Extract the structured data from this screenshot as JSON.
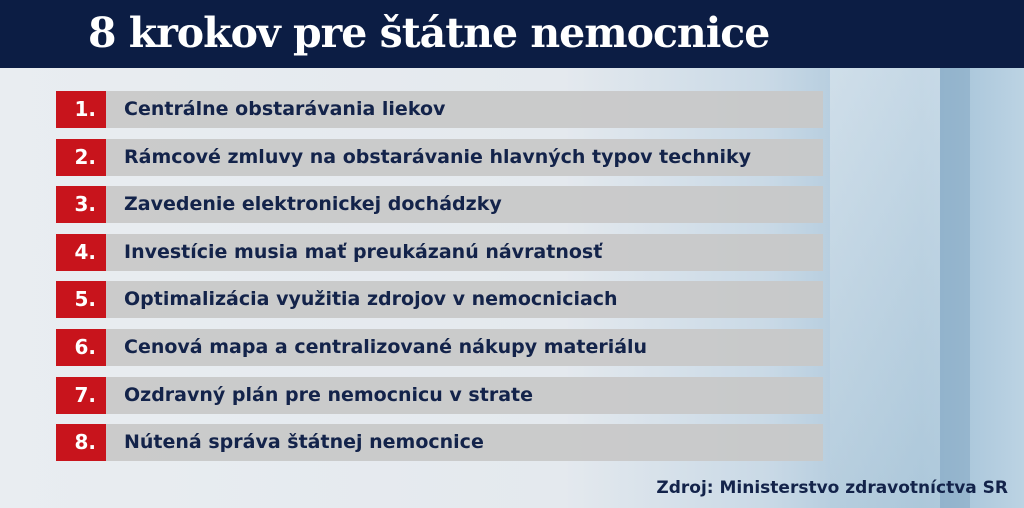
{
  "title": "8 krokov pre štátne nemocnice",
  "steps": [
    {
      "num": "1.",
      "text": "Centrálne obstarávania liekov"
    },
    {
      "num": "2.",
      "text": "Rámcové zmluvy na obstarávanie hlavných typov techniky"
    },
    {
      "num": "3.",
      "text": "Zavedenie elektronickej dochádzky"
    },
    {
      "num": "4.",
      "text": "Investície musia mať preukázanú návratnosť"
    },
    {
      "num": "5.",
      "text": "Optimalizácia využitia zdrojov v nemocniciach"
    },
    {
      "num": "6.",
      "text": "Cenová mapa a centralizované nákupy materiálu"
    },
    {
      "num": "7.",
      "text": "Ozdravný plán pre nemocnicu v strate"
    },
    {
      "num": "8.",
      "text": "Nútená správa štátnej nemocnice"
    }
  ],
  "source": "Zdroj: Ministerstvo zdravotníctva SR",
  "colors": {
    "header": "#0c1d44",
    "number_box": "#c8141c",
    "bar": "#c8c8c8",
    "text": "#13234a"
  }
}
